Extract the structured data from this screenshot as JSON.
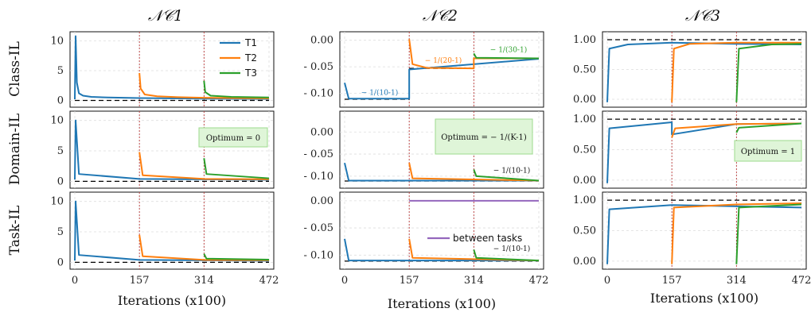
{
  "figure": {
    "columns": [
      "𝒩𝒞1",
      "𝒩𝒞2",
      "𝒩𝒞3"
    ],
    "rows": [
      "Class-IL",
      "Domain-IL",
      "Task-IL"
    ],
    "xlabel": "Iterations (x100)",
    "xticks": [
      0,
      157,
      314,
      472
    ],
    "colors": {
      "T1": "#1f77b4",
      "T2": "#ff7f0e",
      "T3": "#2ca02c",
      "between": "#9467bd",
      "optimum": "#000000",
      "boundary": "#b22222"
    }
  },
  "chart_data": [
    {
      "type": "line",
      "column": "NC1",
      "row": "Class-IL",
      "xlim": [
        0,
        472
      ],
      "ylim": [
        -0.6,
        11
      ],
      "yticks": [
        0,
        5,
        10
      ],
      "legend": {
        "position": "top-right",
        "entries": [
          "T1",
          "T2",
          "T3"
        ]
      },
      "series": [
        {
          "name": "T1",
          "points": [
            [
              0,
              0.2
            ],
            [
              2,
              10.8
            ],
            [
              5,
              3
            ],
            [
              10,
              1.2
            ],
            [
              20,
              0.8
            ],
            [
              40,
              0.6
            ],
            [
              80,
              0.5
            ],
            [
              157,
              0.4
            ],
            [
              314,
              0.3
            ],
            [
              472,
              0.25
            ]
          ]
        },
        {
          "name": "T2",
          "points": [
            [
              157,
              4.6
            ],
            [
              160,
              2
            ],
            [
              170,
              1
            ],
            [
              200,
              0.7
            ],
            [
              250,
              0.55
            ],
            [
              314,
              0.45
            ],
            [
              472,
              0.35
            ]
          ]
        },
        {
          "name": "T3",
          "points": [
            [
              314,
              3.3
            ],
            [
              317,
              1.4
            ],
            [
              330,
              0.8
            ],
            [
              380,
              0.6
            ],
            [
              472,
              0.5
            ]
          ]
        }
      ],
      "optimum": 0
    },
    {
      "type": "line",
      "column": "NC2",
      "row": "Class-IL",
      "xlim": [
        0,
        472
      ],
      "ylim": [
        -0.12,
        0.01
      ],
      "yticks": [
        0.0,
        -0.05,
        -0.1
      ],
      "annotations": [
        "− 1/(10-1)",
        "− 1/(20-1)",
        "− 1/(30-1)"
      ],
      "series": [
        {
          "name": "T1",
          "points": [
            [
              0,
              -0.08
            ],
            [
              10,
              -0.11
            ],
            [
              157,
              -0.11
            ],
            [
              157,
              -0.055
            ],
            [
              472,
              -0.035
            ]
          ]
        },
        {
          "name": "T2",
          "points": [
            [
              157,
              0.002
            ],
            [
              165,
              -0.045
            ],
            [
              200,
              -0.052
            ],
            [
              314,
              -0.053
            ],
            [
              314,
              -0.034
            ],
            [
              472,
              -0.034
            ]
          ]
        },
        {
          "name": "T3",
          "points": [
            [
              314,
              -0.025
            ],
            [
              320,
              -0.033
            ],
            [
              472,
              -0.034
            ]
          ]
        }
      ],
      "optimum": [
        [
          0,
          -0.111
        ],
        [
          157,
          -0.111
        ],
        [
          157,
          -0.053
        ],
        [
          314,
          -0.053
        ],
        [
          314,
          -0.034
        ],
        [
          472,
          -0.034
        ]
      ]
    },
    {
      "type": "line",
      "column": "NC3",
      "row": "Class-IL",
      "xlim": [
        0,
        472
      ],
      "ylim": [
        -0.08,
        1.08
      ],
      "yticks": [
        0.0,
        0.5,
        1.0
      ],
      "series": [
        {
          "name": "T1",
          "points": [
            [
              0,
              -0.05
            ],
            [
              5,
              0.85
            ],
            [
              50,
              0.92
            ],
            [
              157,
              0.95
            ],
            [
              314,
              0.93
            ],
            [
              472,
              0.92
            ]
          ]
        },
        {
          "name": "T2",
          "points": [
            [
              157,
              -0.05
            ],
            [
              162,
              0.85
            ],
            [
              200,
              0.93
            ],
            [
              314,
              0.95
            ],
            [
              472,
              0.95
            ]
          ]
        },
        {
          "name": "T3",
          "points": [
            [
              314,
              -0.05
            ],
            [
              320,
              0.85
            ],
            [
              400,
              0.92
            ],
            [
              472,
              0.93
            ]
          ]
        }
      ],
      "optimum": 1
    },
    {
      "type": "line",
      "column": "NC1",
      "row": "Domain-IL",
      "xlim": [
        0,
        472
      ],
      "ylim": [
        -0.6,
        11
      ],
      "yticks": [
        0,
        5,
        10
      ],
      "box": "Optimum = 0",
      "series": [
        {
          "name": "T1",
          "points": [
            [
              0,
              0.3
            ],
            [
              2,
              10
            ],
            [
              10,
              1.2
            ],
            [
              157,
              0.4
            ],
            [
              472,
              0.25
            ]
          ]
        },
        {
          "name": "T2",
          "points": [
            [
              157,
              4.8
            ],
            [
              165,
              1
            ],
            [
              314,
              0.4
            ],
            [
              472,
              0.35
            ]
          ]
        },
        {
          "name": "T3",
          "points": [
            [
              314,
              3.8
            ],
            [
              320,
              1.2
            ],
            [
              472,
              0.5
            ]
          ]
        }
      ],
      "optimum": 0
    },
    {
      "type": "line",
      "column": "NC2",
      "row": "Domain-IL",
      "xlim": [
        0,
        472
      ],
      "ylim": [
        -0.12,
        0.04
      ],
      "yticks": [
        0.0,
        -0.05,
        -0.1
      ],
      "box": "Optimum = − 1/(K-1)",
      "annotations": [
        "− 1/(10-1)"
      ],
      "series": [
        {
          "name": "T1",
          "points": [
            [
              0,
              -0.07
            ],
            [
              10,
              -0.11
            ],
            [
              157,
              -0.11
            ],
            [
              472,
              -0.11
            ]
          ]
        },
        {
          "name": "T2",
          "points": [
            [
              157,
              -0.07
            ],
            [
              165,
              -0.105
            ],
            [
              472,
              -0.11
            ]
          ]
        },
        {
          "name": "T3",
          "points": [
            [
              314,
              -0.085
            ],
            [
              320,
              -0.1
            ],
            [
              472,
              -0.11
            ]
          ]
        }
      ],
      "optimum": -0.111
    },
    {
      "type": "line",
      "column": "NC3",
      "row": "Domain-IL",
      "xlim": [
        0,
        472
      ],
      "ylim": [
        -0.08,
        1.08
      ],
      "yticks": [
        0.0,
        0.5,
        1.0
      ],
      "box": "Optimum = 1",
      "series": [
        {
          "name": "T1",
          "points": [
            [
              0,
              -0.05
            ],
            [
              5,
              0.85
            ],
            [
              157,
              0.95
            ],
            [
              157,
              0.75
            ],
            [
              314,
              0.92
            ],
            [
              472,
              0.93
            ]
          ]
        },
        {
          "name": "T2",
          "points": [
            [
              157,
              0.7
            ],
            [
              165,
              0.85
            ],
            [
              314,
              0.92
            ],
            [
              472,
              0.93
            ]
          ]
        },
        {
          "name": "T3",
          "points": [
            [
              314,
              0.78
            ],
            [
              320,
              0.86
            ],
            [
              472,
              0.93
            ]
          ]
        }
      ],
      "optimum": 1
    },
    {
      "type": "line",
      "column": "NC1",
      "row": "Task-IL",
      "xlim": [
        0,
        472
      ],
      "ylim": [
        -0.6,
        11
      ],
      "yticks": [
        0,
        5,
        10
      ],
      "series": [
        {
          "name": "T1",
          "points": [
            [
              0,
              0.3
            ],
            [
              2,
              10
            ],
            [
              10,
              1.2
            ],
            [
              157,
              0.4
            ],
            [
              472,
              0.25
            ]
          ]
        },
        {
          "name": "T2",
          "points": [
            [
              157,
              4.5
            ],
            [
              165,
              1
            ],
            [
              314,
              0.4
            ],
            [
              472,
              0.35
            ]
          ]
        },
        {
          "name": "T3",
          "points": [
            [
              314,
              1.4
            ],
            [
              320,
              0.6
            ],
            [
              472,
              0.45
            ]
          ]
        }
      ],
      "optimum": 0
    },
    {
      "type": "line",
      "column": "NC2",
      "row": "Task-IL",
      "xlim": [
        0,
        472
      ],
      "ylim": [
        -0.12,
        0.01
      ],
      "yticks": [
        0.0,
        -0.05,
        -0.1
      ],
      "legend": {
        "position": "center-right",
        "entries": [
          "between tasks"
        ]
      },
      "annotations": [
        "− 1/(10-1)"
      ],
      "series": [
        {
          "name": "T1",
          "points": [
            [
              0,
              -0.07
            ],
            [
              10,
              -0.11
            ],
            [
              472,
              -0.11
            ]
          ]
        },
        {
          "name": "T2",
          "points": [
            [
              157,
              -0.07
            ],
            [
              165,
              -0.105
            ],
            [
              472,
              -0.11
            ]
          ]
        },
        {
          "name": "T3",
          "points": [
            [
              314,
              -0.09
            ],
            [
              320,
              -0.105
            ],
            [
              472,
              -0.11
            ]
          ]
        },
        {
          "name": "between tasks",
          "points": [
            [
              157,
              0.0
            ],
            [
              314,
              0.0
            ],
            [
              472,
              0.0
            ]
          ]
        }
      ],
      "optimum": -0.111
    },
    {
      "type": "line",
      "column": "NC3",
      "row": "Task-IL",
      "xlim": [
        0,
        472
      ],
      "ylim": [
        -0.08,
        1.08
      ],
      "yticks": [
        0.0,
        0.5,
        1.0
      ],
      "series": [
        {
          "name": "T1",
          "points": [
            [
              0,
              -0.05
            ],
            [
              5,
              0.85
            ],
            [
              157,
              0.92
            ],
            [
              472,
              0.88
            ]
          ]
        },
        {
          "name": "T2",
          "points": [
            [
              157,
              -0.05
            ],
            [
              162,
              0.88
            ],
            [
              314,
              0.93
            ],
            [
              472,
              0.95
            ]
          ]
        },
        {
          "name": "T3",
          "points": [
            [
              314,
              -0.05
            ],
            [
              320,
              0.88
            ],
            [
              472,
              0.93
            ]
          ]
        }
      ],
      "optimum": 1
    }
  ]
}
